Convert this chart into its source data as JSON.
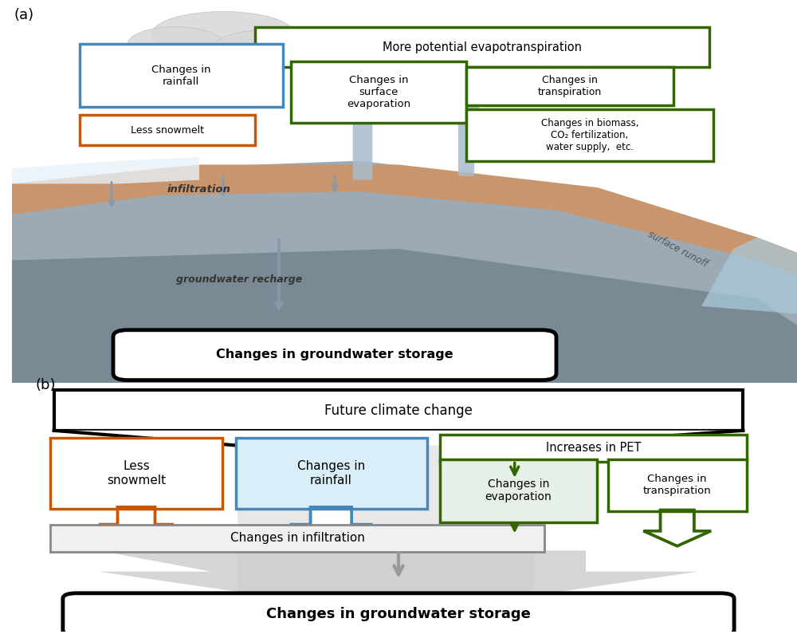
{
  "title_a": "(a)",
  "title_b": "(b)",
  "colors": {
    "blue_box": "#4488BB",
    "orange_box": "#CC5500",
    "green_box": "#336600",
    "gray_arrow": "#8899AA",
    "black": "#111111",
    "white": "#FFFFFF",
    "soil_brown": "#C8956C",
    "rock_gray": "#9BAAB5",
    "rock_dark": "#7A8A95",
    "water_blue": "#AACCDD",
    "light_gray_bg": "#CCCCCC",
    "orange_arrow": "#CC5500",
    "blue_arrow": "#4488BB",
    "green_arrow": "#336600",
    "gray_box_border": "#999999",
    "rainfall_box_bg": "#D8EEF8"
  },
  "panel_b": {
    "future_climate_text": "Future climate change",
    "less_snowmelt": "Less\nsnowmelt",
    "changes_rainfall": "Changes in\nrainfall",
    "increases_pet": "Increases in PET",
    "changes_evaporation": "Changes in\nevaporation",
    "changes_transpiration": "Changes in\ntranspiration",
    "changes_infiltration": "Changes in infiltration",
    "changes_groundwater": "Changes in groundwater storage"
  },
  "panel_a": {
    "more_pet": "More potential evapotranspiration",
    "changes_rainfall": "Changes in\nrainfall",
    "less_snowmelt": "Less snowmelt",
    "changes_surface_evap": "Changes in\nsurface\nevaporation",
    "changes_transpiration": "Changes in\ntranspiration",
    "changes_biomass": "Changes in biomass,\nCO₂ fertilization,\nwater supply,  etc.",
    "infiltration": "infiltration",
    "groundwater_recharge": "groundwater recharge",
    "surface_runoff": "surface runoff",
    "changes_groundwater": "Changes in groundwater storage"
  }
}
